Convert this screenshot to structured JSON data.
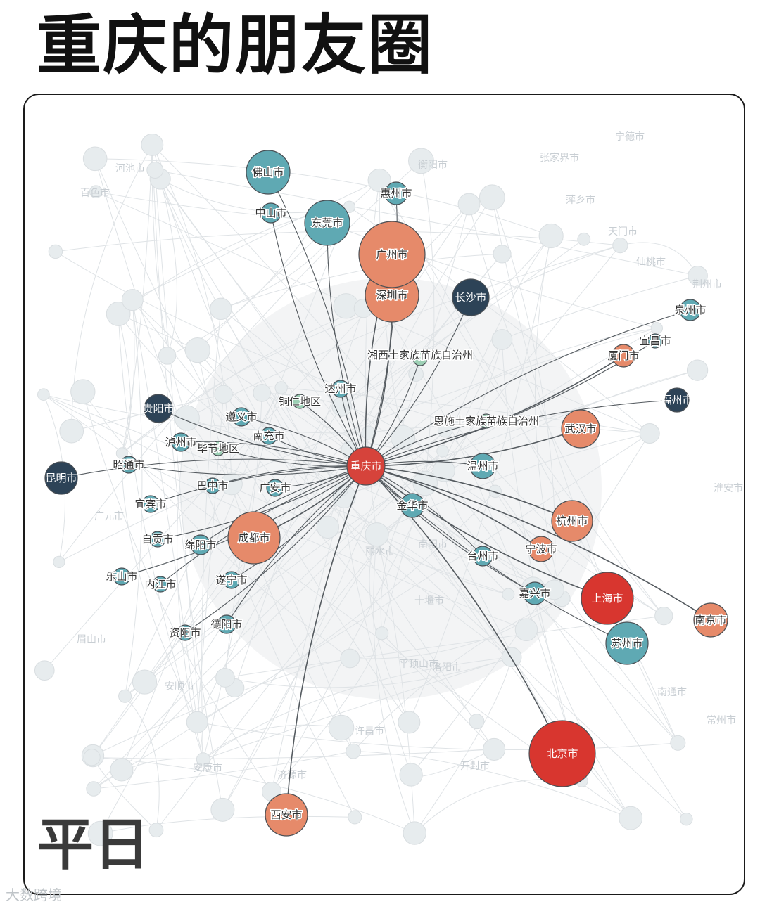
{
  "title": "重庆的朋友圈",
  "mode_label": "平日",
  "watermark": "大数跨境",
  "colors": {
    "hub": "#d6433b",
    "very_strong": "#d8362f",
    "strong": "#e68a6a",
    "medium": "#5fa9b3",
    "dark": "#2d4357",
    "light": "#9dd0b5"
  },
  "network": {
    "center": "重庆市",
    "nodes": [
      {
        "name": "重庆市",
        "tier": "hub"
      },
      {
        "name": "北京市",
        "tier": "very_strong"
      },
      {
        "name": "上海市",
        "tier": "very_strong"
      },
      {
        "name": "广州市",
        "tier": "strong"
      },
      {
        "name": "深圳市",
        "tier": "strong"
      },
      {
        "name": "成都市",
        "tier": "strong"
      },
      {
        "name": "武汉市",
        "tier": "strong"
      },
      {
        "name": "杭州市",
        "tier": "strong"
      },
      {
        "name": "西安市",
        "tier": "strong"
      },
      {
        "name": "南京市",
        "tier": "strong"
      },
      {
        "name": "厦门市",
        "tier": "strong"
      },
      {
        "name": "宁波市",
        "tier": "strong"
      },
      {
        "name": "佛山市",
        "tier": "medium"
      },
      {
        "name": "东莞市",
        "tier": "medium"
      },
      {
        "name": "苏州市",
        "tier": "medium"
      },
      {
        "name": "中山市",
        "tier": "medium"
      },
      {
        "name": "惠州市",
        "tier": "medium"
      },
      {
        "name": "泉州市",
        "tier": "medium"
      },
      {
        "name": "宜昌市",
        "tier": "medium"
      },
      {
        "name": "温州市",
        "tier": "medium"
      },
      {
        "name": "金华市",
        "tier": "medium"
      },
      {
        "name": "台州市",
        "tier": "medium"
      },
      {
        "name": "嘉兴市",
        "tier": "medium"
      },
      {
        "name": "达州市",
        "tier": "medium"
      },
      {
        "name": "遵义市",
        "tier": "medium"
      },
      {
        "name": "南充市",
        "tier": "medium"
      },
      {
        "name": "泸州市",
        "tier": "medium"
      },
      {
        "name": "昭通市",
        "tier": "medium"
      },
      {
        "name": "巴中市",
        "tier": "medium"
      },
      {
        "name": "广安市",
        "tier": "medium"
      },
      {
        "name": "宜宾市",
        "tier": "medium"
      },
      {
        "name": "自贡市",
        "tier": "medium"
      },
      {
        "name": "绵阳市",
        "tier": "medium"
      },
      {
        "name": "乐山市",
        "tier": "medium"
      },
      {
        "name": "内江市",
        "tier": "medium"
      },
      {
        "name": "遂宁市",
        "tier": "medium"
      },
      {
        "name": "德阳市",
        "tier": "medium"
      },
      {
        "name": "资阳市",
        "tier": "medium"
      },
      {
        "name": "长沙市",
        "tier": "dark"
      },
      {
        "name": "贵阳市",
        "tier": "dark"
      },
      {
        "name": "昆明市",
        "tier": "dark"
      },
      {
        "name": "福州市",
        "tier": "dark"
      },
      {
        "name": "湘西土家族苗族自治州",
        "tier": "light"
      },
      {
        "name": "恩施土家族苗族自治州",
        "tier": "light"
      },
      {
        "name": "铜仁地区",
        "tier": "light"
      },
      {
        "name": "毕节地区",
        "tier": "light"
      }
    ],
    "background_labels": [
      "河池市",
      "百色市",
      "张家界市",
      "萍乡市",
      "天门市",
      "仙桃市",
      "荆州市",
      "宁德市",
      "十堰市",
      "南阳市",
      "丽水市",
      "许昌市",
      "洛阳市",
      "平顶山市",
      "安康市",
      "开封市",
      "眉山市",
      "广元市",
      "安顺市",
      "衡阳市",
      "南通市",
      "常州市",
      "淮安市",
      "济源市"
    ]
  }
}
